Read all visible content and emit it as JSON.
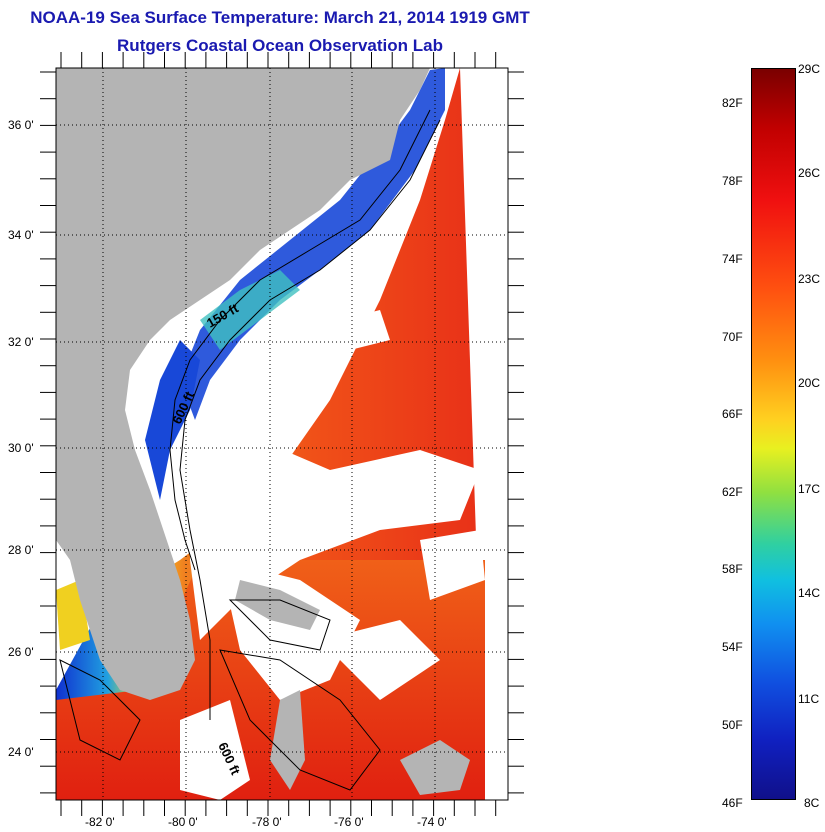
{
  "header": {
    "title": "NOAA-19 Sea Surface Temperature:  March 21, 2014 1919 GMT",
    "subtitle": "Rutgers Coastal Ocean Observation Lab"
  },
  "map": {
    "lon_ticks": [
      "-82 0'",
      "-80 0'",
      "-78 0'",
      "-76 0'",
      "-74 0'"
    ],
    "lat_ticks": [
      "36 0'",
      "34 0'",
      "32 0'",
      "30 0'",
      "28 0'",
      "26 0'",
      "24 0'"
    ],
    "contour_labels": [
      "150 ft",
      "600 ft",
      "600 ft"
    ],
    "colors": {
      "land": "#b4b4b4",
      "cloud": "#ffffff",
      "warm": "#e8341a",
      "cold": "#1030d0"
    }
  },
  "colorbar": {
    "fahrenheit": [
      "82F",
      "78F",
      "74F",
      "70F",
      "66F",
      "62F",
      "58F",
      "54F",
      "50F",
      "46F"
    ],
    "celsius": [
      "29C",
      "26C",
      "23C",
      "20C",
      "17C",
      "14C",
      "11C",
      "8C"
    ],
    "range_c": [
      8,
      29
    ]
  }
}
